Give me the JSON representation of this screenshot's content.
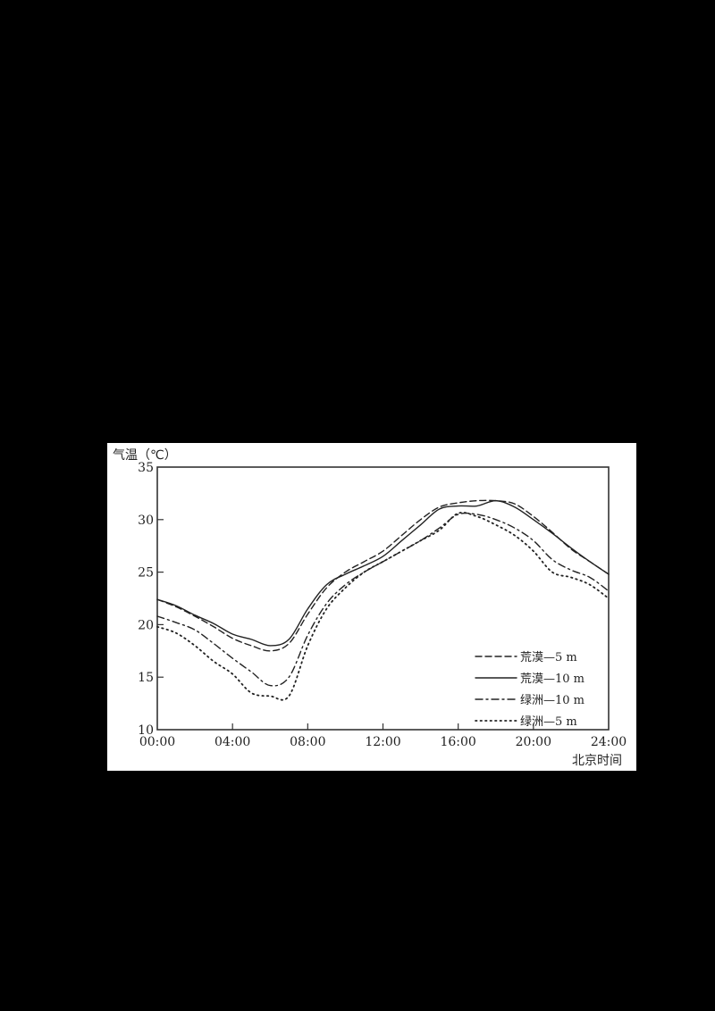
{
  "chart_data": {
    "type": "line",
    "title": "",
    "ylabel": "气温（℃）",
    "xlabel": "北京时间",
    "ylim": [
      10,
      35
    ],
    "yticks": [
      10,
      15,
      20,
      25,
      30,
      35
    ],
    "xlim": [
      0,
      24
    ],
    "xticks": [
      "00:00",
      "04:00",
      "08:00",
      "12:00",
      "16:00",
      "20:00",
      "24:00"
    ],
    "grid": false,
    "legend_position": "lower right",
    "x": [
      0,
      1,
      2,
      3,
      4,
      5,
      6,
      7,
      8,
      9,
      10,
      11,
      12,
      13,
      14,
      15,
      16,
      17,
      18,
      19,
      20,
      21,
      22,
      23,
      24
    ],
    "series": [
      {
        "name": "荒漠—5 m",
        "style": "dashed",
        "values": [
          22.4,
          21.7,
          20.8,
          19.8,
          18.7,
          18.0,
          17.5,
          18.2,
          21.0,
          23.5,
          25.0,
          26.0,
          27.0,
          28.5,
          30.0,
          31.2,
          31.6,
          31.8,
          31.8,
          31.5,
          30.3,
          28.8,
          27.2,
          26.0,
          24.8
        ]
      },
      {
        "name": "荒漠—10 m",
        "style": "solid",
        "values": [
          22.4,
          21.8,
          20.9,
          20.1,
          19.1,
          18.6,
          18.0,
          18.6,
          21.5,
          23.8,
          24.8,
          25.6,
          26.5,
          28.0,
          29.5,
          31.0,
          31.3,
          31.3,
          31.8,
          31.2,
          30.0,
          28.7,
          27.3,
          26.0,
          24.8
        ]
      },
      {
        "name": "绿洲—10 m",
        "style": "dashdot",
        "values": [
          20.8,
          20.2,
          19.5,
          18.2,
          16.8,
          15.5,
          14.2,
          15.0,
          19.0,
          22.0,
          23.8,
          25.0,
          26.0,
          27.0,
          28.0,
          29.2,
          30.5,
          30.5,
          30.0,
          29.2,
          28.0,
          26.2,
          25.2,
          24.5,
          23.2
        ]
      },
      {
        "name": "绿洲—5 m",
        "style": "dotted",
        "values": [
          19.8,
          19.2,
          18.0,
          16.5,
          15.3,
          13.5,
          13.2,
          13.2,
          18.0,
          21.5,
          23.5,
          25.0,
          26.0,
          27.0,
          28.0,
          29.0,
          30.6,
          30.3,
          29.5,
          28.5,
          27.0,
          25.0,
          24.5,
          23.8,
          22.5
        ]
      }
    ]
  },
  "figure": {
    "y_axis_title": "气温（℃）",
    "x_axis_title": "北京时间",
    "legend": [
      {
        "label": "荒漠—5 m",
        "style": "dashed"
      },
      {
        "label": "荒漠—10 m",
        "style": "solid"
      },
      {
        "label": "绿洲—10 m",
        "style": "dashdot"
      },
      {
        "label": "绿洲—5 m",
        "style": "dotted"
      }
    ]
  }
}
